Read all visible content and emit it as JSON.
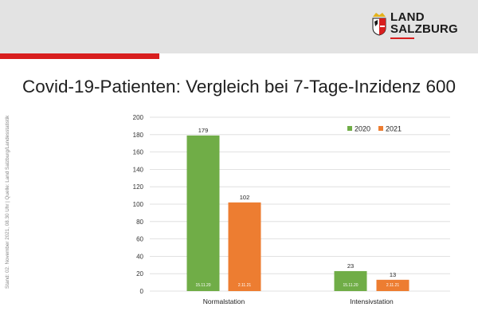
{
  "logo": {
    "line1": "LAND",
    "line2": "SALZBURG",
    "colors": {
      "red": "#d81e1e",
      "dark": "#1a1a1a",
      "gold": "#e3b21c"
    }
  },
  "title": "Covid-19-Patienten: Vergleich bei 7-Tage-Inzidenz 600",
  "side_note": "Stand: 02. November 2021, 08.30 Uhr | Quelle: Land Salzburg/Landesstatistik",
  "colors": {
    "header_band": "#e3e3e3",
    "accent_red": "#d81e1e",
    "series_2020": "#70ad47",
    "series_2021": "#ed7d31",
    "gridline": "#d9d9d9"
  },
  "chart_data": {
    "type": "bar",
    "categories": [
      "Normalstation",
      "Intensivstation"
    ],
    "series": [
      {
        "name": "2020",
        "values": [
          179,
          23
        ],
        "dates": [
          "15.11.20",
          "15.11.20"
        ],
        "color": "#70ad47"
      },
      {
        "name": "2021",
        "values": [
          102,
          13
        ],
        "dates": [
          "2.11.21",
          "2.11.21"
        ],
        "color": "#ed7d31"
      }
    ],
    "yticks": [
      0,
      20,
      40,
      60,
      80,
      100,
      120,
      140,
      160,
      180,
      200
    ],
    "ylim": [
      0,
      200
    ],
    "grid": true,
    "legend": "top-right"
  }
}
